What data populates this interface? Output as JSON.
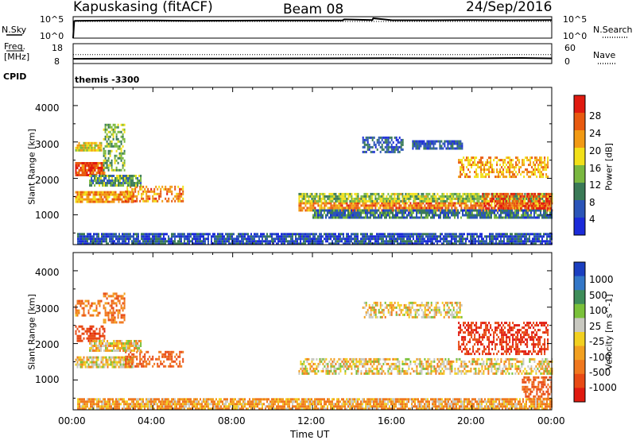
{
  "header": {
    "station": "Kapuskasing (fitACF)",
    "beam": "Beam 08",
    "date": "24/Sep/2016"
  },
  "nsky_panel": {
    "left_label": "N.Sky",
    "left_ticks": [
      "10^5",
      "10^0"
    ],
    "right_ticks": [
      "10^5",
      "10^0"
    ],
    "right_label": "N.Search"
  },
  "freq_panel": {
    "label_top": "Freq.",
    "label_bottom": "[MHz]",
    "left_ticks": [
      "18",
      "8"
    ],
    "right_ticks": [
      "60",
      "0"
    ],
    "right_label": "Nave"
  },
  "cpid_panel": {
    "label": "CPID",
    "value": "themis -3300"
  },
  "power_panel": {
    "ylabel": "Slant Range [km]",
    "yticks": [
      "1000",
      "2000",
      "3000",
      "4000"
    ],
    "colorbar_label": "Power [dB]",
    "colorbar_ticks": [
      "4",
      "8",
      "12",
      "16",
      "20",
      "24",
      "28"
    ],
    "colors": [
      "#1b2bd9",
      "#2b55b8",
      "#3a7a57",
      "#7ab840",
      "#f2e019",
      "#f29a14",
      "#e85a10",
      "#e01a10"
    ]
  },
  "velocity_panel": {
    "ylabel": "Slant Range [km]",
    "yticks": [
      "1000",
      "2000",
      "3000",
      "4000"
    ],
    "colorbar_label": "Velocity [m s^-1]",
    "colorbar_ticks": [
      "1000",
      "500",
      "100",
      "25",
      "-25",
      "-100",
      "-500",
      "-1000"
    ],
    "colors": [
      "#1b3fc0",
      "#3377c7",
      "#3e8d5a",
      "#7ac13a",
      "#c8c8c0",
      "#f2d020",
      "#f2a020",
      "#f0781e",
      "#e84a14",
      "#e01a10"
    ]
  },
  "x_axis": {
    "xlabel": "Time UT",
    "ticks": [
      "00:00",
      "04:00",
      "08:00",
      "12:00",
      "16:00",
      "20:00",
      "00:00"
    ]
  },
  "chart_data": [
    {
      "type": "line",
      "name": "N.Sky / N.Search",
      "x_hours": [
        0,
        0.05,
        0.1,
        2,
        4,
        6,
        8,
        10,
        12,
        13.5,
        13.6,
        15,
        15.05,
        16,
        18,
        20,
        22,
        24
      ],
      "y_log10": [
        0,
        4.6,
        4.7,
        4.8,
        4.8,
        4.7,
        4.75,
        4.8,
        4.8,
        4.8,
        5.1,
        4.9,
        5.4,
        4.85,
        4.85,
        4.9,
        4.85,
        4.9
      ],
      "y_scale": "log",
      "ylim": [
        "10^0",
        "10^5"
      ]
    },
    {
      "type": "line",
      "name": "Freq.",
      "x_hours": [
        0,
        4,
        8,
        12,
        16,
        20,
        22.5,
        24
      ],
      "y_mhz": [
        10.4,
        10.5,
        10.5,
        10.6,
        10.7,
        10.6,
        10.8,
        10.6
      ],
      "ylim": [
        8,
        18
      ],
      "dotted_reference": 12.5
    },
    {
      "type": "heatmap",
      "name": "Power",
      "x_range_hours": [
        0,
        24
      ],
      "y_range_km": [
        180,
        4500
      ],
      "zlim_db": [
        0,
        30
      ],
      "regions": [
        {
          "t0": 0.1,
          "t1": 1.6,
          "r0": 2100,
          "r1": 2450,
          "z": 26
        },
        {
          "t0": 0.1,
          "t1": 1.4,
          "r0": 2800,
          "r1": 3000,
          "z": 17
        },
        {
          "t0": 0.1,
          "t1": 3.0,
          "r0": 1350,
          "r1": 1650,
          "z": 21
        },
        {
          "t0": 1.5,
          "t1": 2.6,
          "r0": 2200,
          "r1": 3500,
          "z": 13
        },
        {
          "t0": 2.6,
          "t1": 5.5,
          "r0": 1350,
          "r1": 1800,
          "z": 22
        },
        {
          "t0": 0.8,
          "t1": 3.4,
          "r0": 1800,
          "r1": 2100,
          "z": 11
        },
        {
          "t0": 11.3,
          "t1": 24,
          "r0": 1150,
          "r1": 1350,
          "z": 22
        },
        {
          "t0": 11.3,
          "t1": 24,
          "r0": 1350,
          "r1": 1600,
          "z": 14
        },
        {
          "t0": 12,
          "t1": 24,
          "r0": 950,
          "r1": 1150,
          "z": 8
        },
        {
          "t0": 14.5,
          "t1": 16.5,
          "r0": 2750,
          "r1": 3150,
          "z": 6
        },
        {
          "t0": 17,
          "t1": 19.5,
          "r0": 2800,
          "r1": 3050,
          "z": 6
        },
        {
          "t0": 19.3,
          "t1": 23.8,
          "r0": 2050,
          "r1": 2600,
          "z": 20
        },
        {
          "t0": 20.5,
          "t1": 24,
          "r0": 1200,
          "r1": 1600,
          "z": 27
        },
        {
          "t0": 0.2,
          "t1": 24,
          "r0": 200,
          "r1": 500,
          "z": 5
        }
      ]
    },
    {
      "type": "heatmap",
      "name": "Velocity",
      "x_range_hours": [
        0,
        24
      ],
      "y_range_km": [
        180,
        4500
      ],
      "zlim_ms": [
        -1000,
        1000
      ],
      "regions": [
        {
          "t0": 0.1,
          "t1": 1.6,
          "r0": 2100,
          "r1": 2500,
          "z": -400
        },
        {
          "t0": 0.1,
          "t1": 1.4,
          "r0": 2800,
          "r1": 3200,
          "z": -150
        },
        {
          "t0": 0.1,
          "t1": 3.0,
          "r0": 1350,
          "r1": 1650,
          "z": 0
        },
        {
          "t0": 1.5,
          "t1": 2.6,
          "r0": 2600,
          "r1": 3400,
          "z": -200
        },
        {
          "t0": 2.6,
          "t1": 5.5,
          "r0": 1350,
          "r1": 1800,
          "z": -250
        },
        {
          "t0": 0.8,
          "t1": 3.4,
          "r0": 1800,
          "r1": 2100,
          "z": 0
        },
        {
          "t0": 11.3,
          "t1": 24,
          "r0": 1150,
          "r1": 1600,
          "z": 0
        },
        {
          "t0": 14.5,
          "t1": 19.5,
          "r0": 2750,
          "r1": 3150,
          "z": 0
        },
        {
          "t0": 19.3,
          "t1": 23.8,
          "r0": 1700,
          "r1": 2600,
          "z": -500
        },
        {
          "t0": 22.5,
          "t1": 24,
          "r0": 500,
          "r1": 1100,
          "z": -300
        },
        {
          "t0": 0.2,
          "t1": 24,
          "r0": 200,
          "r1": 500,
          "z": -80
        }
      ]
    }
  ]
}
